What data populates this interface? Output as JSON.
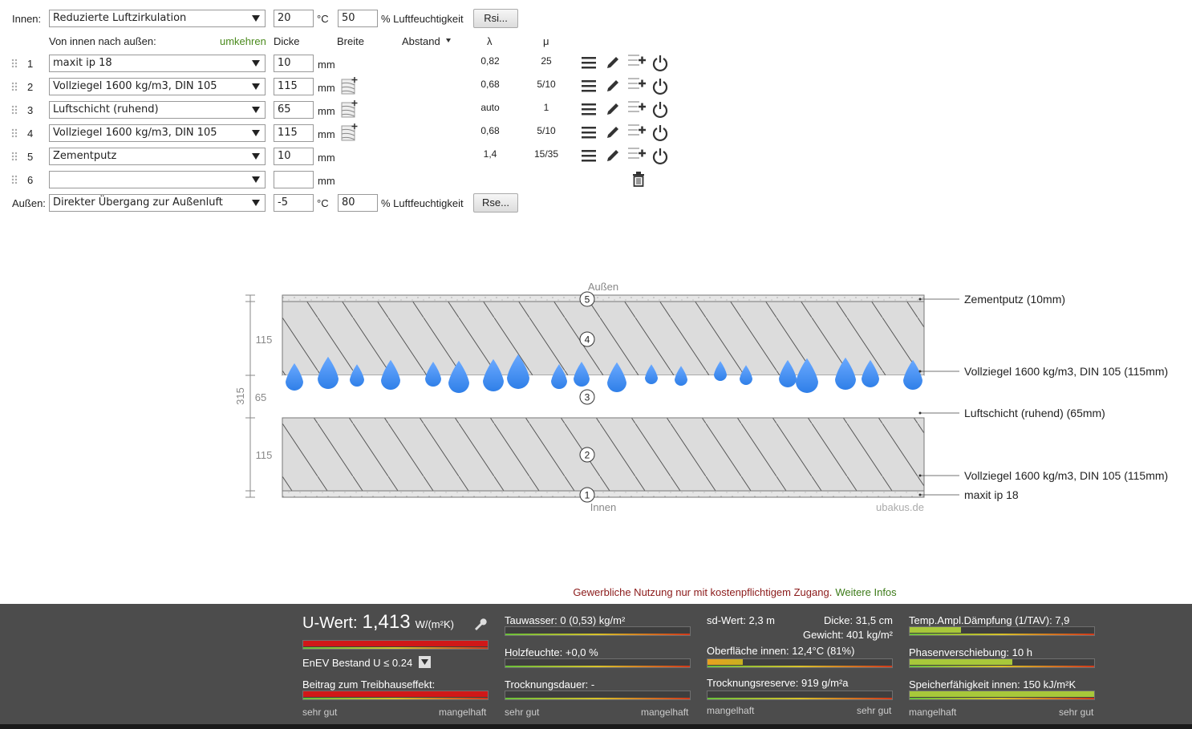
{
  "inside": {
    "label": "Innen:",
    "condition": "Reduzierte Luftzirkulation",
    "temperature": "20",
    "temp_unit": "°C",
    "humidity": "50",
    "humidity_label": "% Luftfeuchtigkeit",
    "button": "Rsi..."
  },
  "columns": {
    "direction": "Von innen nach außen:",
    "reverse": "umkehren",
    "thickness": "Dicke",
    "width": "Breite",
    "spacing": "Abstand",
    "lambda": "λ",
    "mu": "μ"
  },
  "layers": [
    {
      "index": "1",
      "material": "maxit ip 18",
      "thickness": "10",
      "unit": "mm",
      "lambda": "0,82",
      "mu": "25"
    },
    {
      "index": "2",
      "material": "Vollziegel 1600 kg/m3, DIN 105",
      "thickness": "115",
      "unit": "mm",
      "lambda": "0,68",
      "mu": "5/10"
    },
    {
      "index": "3",
      "material": "Luftschicht (ruhend)",
      "thickness": "65",
      "unit": "mm",
      "lambda": "auto",
      "mu": "1"
    },
    {
      "index": "4",
      "material": "Vollziegel 1600 kg/m3, DIN 105",
      "thickness": "115",
      "unit": "mm",
      "lambda": "0,68",
      "mu": "5/10"
    },
    {
      "index": "5",
      "material": "Zementputz",
      "thickness": "10",
      "unit": "mm",
      "lambda": "1,4",
      "mu": "15/35"
    },
    {
      "index": "6",
      "unit": "mm"
    }
  ],
  "outside": {
    "label": "Außen:",
    "condition": "Direkter Übergang zur Außenluft",
    "temperature": "-5",
    "temp_unit": "°C",
    "humidity": "80",
    "humidity_label": "% Luftfeuchtigkeit",
    "button": "Rse..."
  },
  "diagram": {
    "top": "Außen",
    "bottom": "Innen",
    "total": "315",
    "dims": [
      "115",
      "65",
      "115"
    ],
    "markers": [
      "5",
      "4",
      "3",
      "2",
      "1"
    ],
    "labels": [
      "Zementputz (10mm)",
      "Vollziegel 1600 kg/m3, DIN 105 (115mm)",
      "Luftschicht (ruhend) (65mm)",
      "Vollziegel 1600 kg/m3, DIN 105 (115mm)",
      "maxit ip 18"
    ],
    "watermark": "ubakus.de"
  },
  "notice": {
    "text": "Gewerbliche Nutzung nur mit kostenpflichtigem Zugang.",
    "link": "Weitere Infos"
  },
  "results": {
    "u_label": "U-Wert:",
    "u_value": "1,413",
    "u_unit": "W/(m²K)",
    "standard": "EnEV Bestand U ≤ 0.24",
    "greenhouse": "Beitrag zum Treibhauseffekt:",
    "condensate": "Tauwasser: 0 (0,53) kg/m²",
    "wood_moisture": "Holzfeuchte: +0,0 %",
    "drying_time": "Trocknungsdauer: -",
    "sd": "sd-Wert: 2,3 m",
    "thickness": "Dicke: 31,5 cm",
    "weight": "Gewicht: 401 kg/m²",
    "surface": "Oberfläche innen: 12,4°C (81%)",
    "drying_reserve": "Trocknungsreserve: 919 g/m²a",
    "damping": "Temp.Ampl.Dämpfung (1/TAV): 7,9",
    "phase": "Phasenverschiebung: 10 h",
    "storage": "Speicherfähigkeit innen: 150 kJ/m²K",
    "good": "sehr gut",
    "bad": "mangelhaft"
  }
}
